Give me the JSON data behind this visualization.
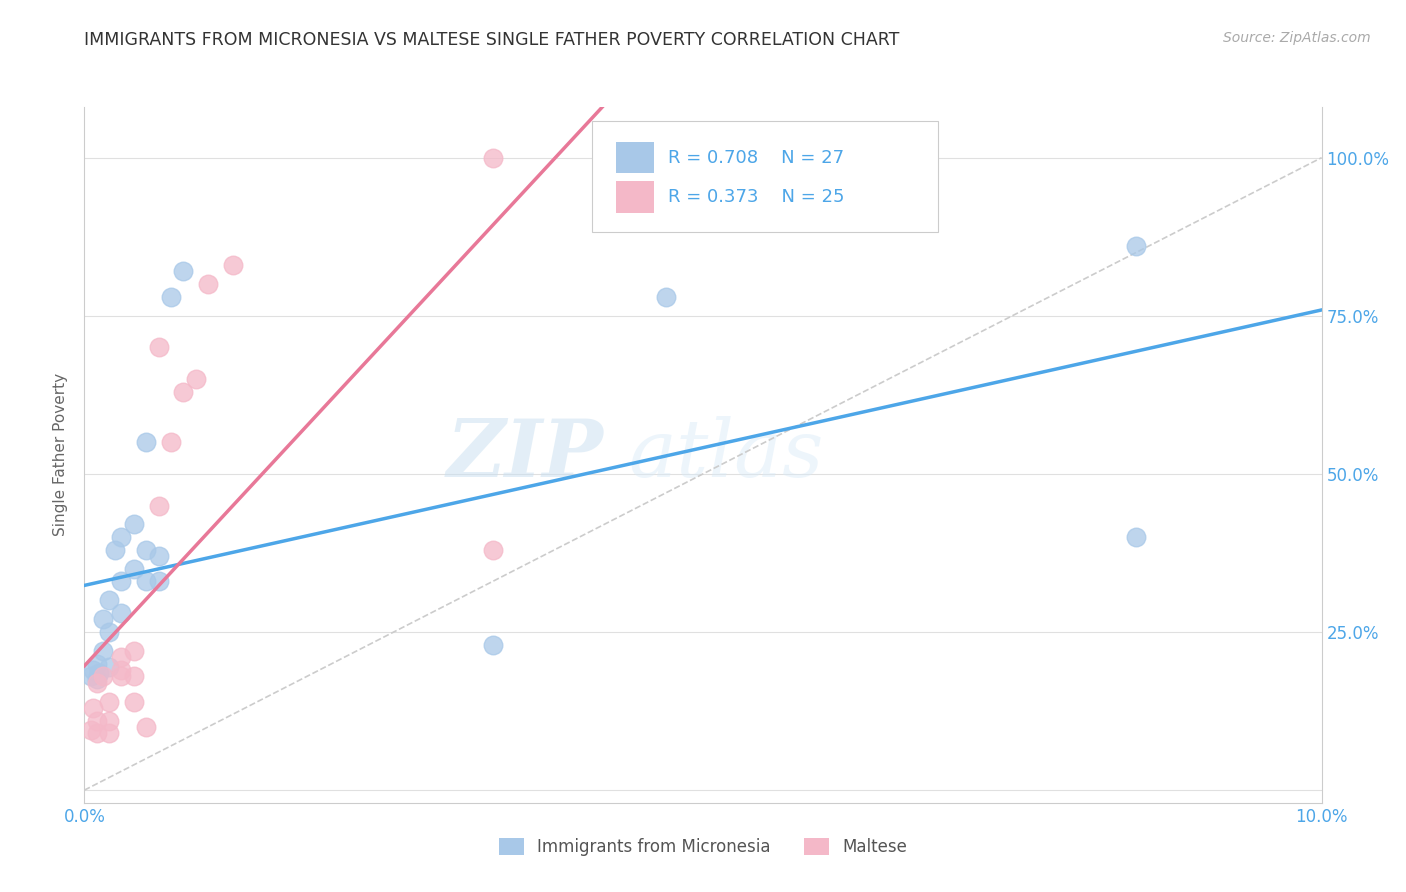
{
  "title": "IMMIGRANTS FROM MICRONESIA VS MALTESE SINGLE FATHER POVERTY CORRELATION CHART",
  "source": "Source: ZipAtlas.com",
  "ylabel": "Single Father Poverty",
  "ytick_labels": [
    "",
    "25.0%",
    "50.0%",
    "75.0%",
    "100.0%"
  ],
  "ytick_values": [
    0,
    0.25,
    0.5,
    0.75,
    1.0
  ],
  "xlim": [
    0,
    0.1
  ],
  "ylim": [
    -0.02,
    1.08
  ],
  "blue_color": "#a8c8e8",
  "pink_color": "#f4b8c8",
  "blue_line_color": "#4da6e8",
  "pink_line_color": "#e87898",
  "diag_line_color": "#cccccc",
  "legend_label_blue": "Immigrants from Micronesia",
  "legend_label_pink": "Maltese",
  "watermark_zip": "ZIP",
  "watermark_atlas": "atlas",
  "blue_x": [
    0.0005,
    0.0007,
    0.001,
    0.001,
    0.0012,
    0.0015,
    0.0015,
    0.002,
    0.002,
    0.002,
    0.0025,
    0.003,
    0.003,
    0.003,
    0.004,
    0.004,
    0.005,
    0.005,
    0.005,
    0.006,
    0.006,
    0.007,
    0.008,
    0.033,
    0.047,
    0.085,
    0.085
  ],
  "blue_y": [
    0.18,
    0.19,
    0.175,
    0.2,
    0.185,
    0.22,
    0.27,
    0.195,
    0.25,
    0.3,
    0.38,
    0.28,
    0.33,
    0.4,
    0.35,
    0.42,
    0.33,
    0.38,
    0.55,
    0.33,
    0.37,
    0.78,
    0.82,
    0.23,
    0.78,
    0.4,
    0.86
  ],
  "pink_x": [
    0.0005,
    0.0007,
    0.001,
    0.001,
    0.001,
    0.0015,
    0.002,
    0.002,
    0.002,
    0.003,
    0.003,
    0.003,
    0.004,
    0.004,
    0.004,
    0.005,
    0.006,
    0.006,
    0.007,
    0.008,
    0.009,
    0.01,
    0.012,
    0.033,
    0.033
  ],
  "pink_y": [
    0.095,
    0.13,
    0.17,
    0.09,
    0.11,
    0.18,
    0.14,
    0.11,
    0.09,
    0.19,
    0.18,
    0.21,
    0.22,
    0.14,
    0.18,
    0.1,
    0.45,
    0.7,
    0.55,
    0.63,
    0.65,
    0.8,
    0.83,
    0.38,
    1.0
  ],
  "blue_line_x": [
    0.0,
    0.1
  ],
  "pink_line_xlim": [
    0.0,
    0.05
  ]
}
